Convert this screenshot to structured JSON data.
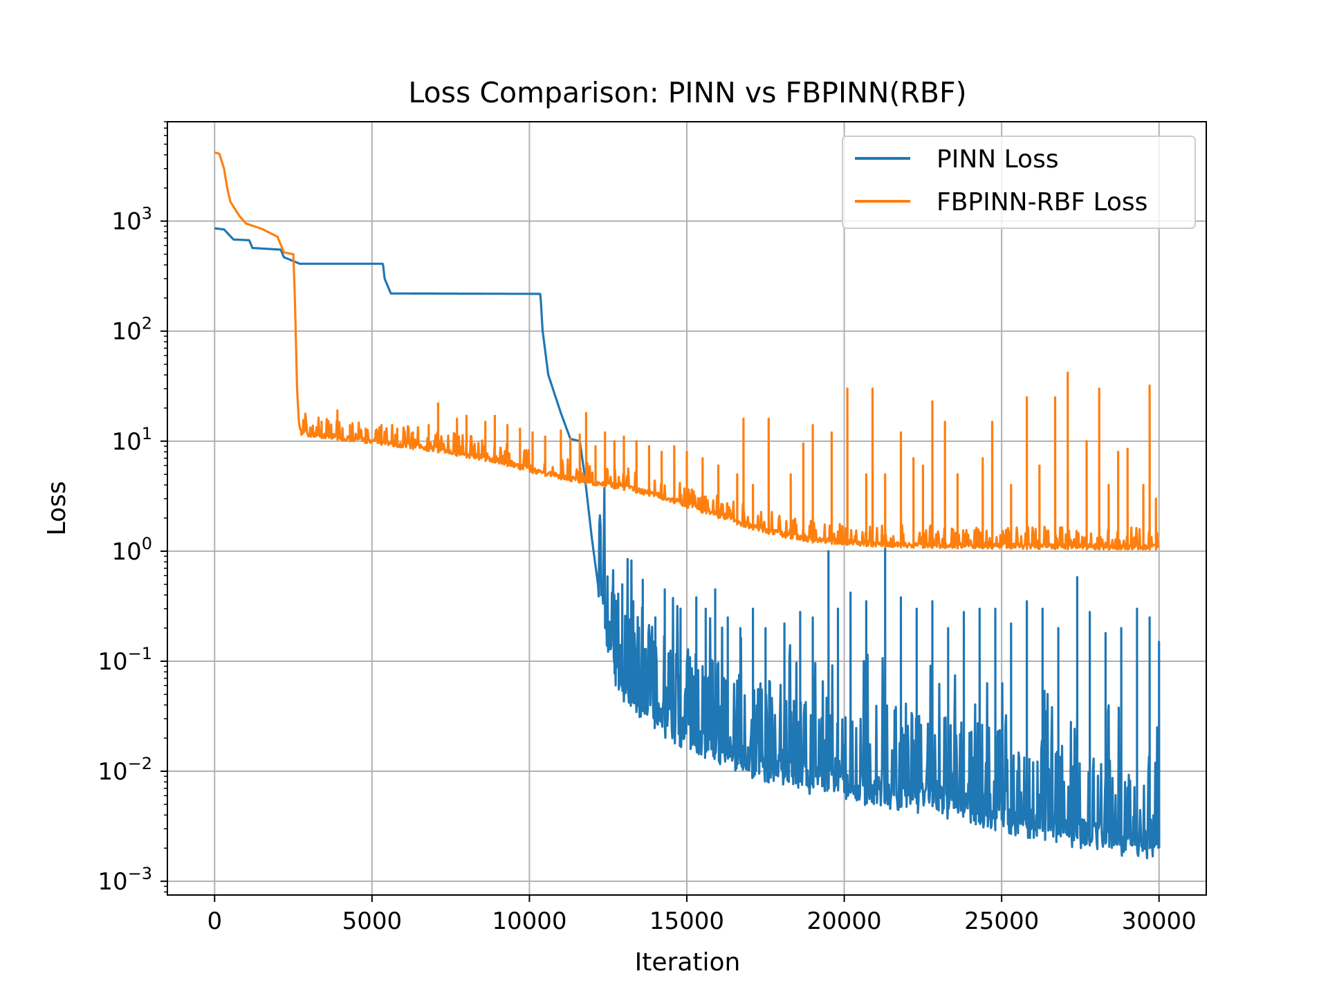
{
  "chart_data": {
    "type": "line",
    "title": "Loss Comparison: PINN vs FBPINN(RBF)",
    "xlabel": "Iteration",
    "ylabel": "Loss",
    "xlim": [
      -1500,
      31500
    ],
    "ylim": [
      0.00075,
      8000
    ],
    "yscale": "log",
    "grid": true,
    "legend_position": "top-right",
    "x_ticks": [
      {
        "value": 0,
        "label": "0"
      },
      {
        "value": 5000,
        "label": "5000"
      },
      {
        "value": 10000,
        "label": "10000"
      },
      {
        "value": 15000,
        "label": "15000"
      },
      {
        "value": 20000,
        "label": "20000"
      },
      {
        "value": 25000,
        "label": "25000"
      },
      {
        "value": 30000,
        "label": "30000"
      }
    ],
    "y_ticks": [
      {
        "value": 0.001,
        "base": "10",
        "exp": "−3"
      },
      {
        "value": 0.01,
        "base": "10",
        "exp": "−2"
      },
      {
        "value": 0.1,
        "base": "10",
        "exp": "−1"
      },
      {
        "value": 1,
        "base": "10",
        "exp": "0"
      },
      {
        "value": 10,
        "base": "10",
        "exp": "1"
      },
      {
        "value": 100,
        "base": "10",
        "exp": "2"
      },
      {
        "value": 1000,
        "base": "10",
        "exp": "3"
      }
    ],
    "series": [
      {
        "name": "PINN Loss",
        "color": "#1f77b4",
        "smooth": [
          [
            0,
            860
          ],
          [
            300,
            840
          ],
          [
            600,
            680
          ],
          [
            1100,
            670
          ],
          [
            1200,
            570
          ],
          [
            2100,
            550
          ],
          [
            2200,
            470
          ],
          [
            2700,
            410
          ],
          [
            5350,
            410
          ],
          [
            5400,
            300
          ],
          [
            5600,
            220
          ],
          [
            10350,
            218
          ],
          [
            10420,
            100
          ],
          [
            10600,
            40
          ],
          [
            11000,
            18
          ],
          [
            11300,
            10.5
          ],
          [
            11600,
            10
          ],
          [
            11750,
            5
          ],
          [
            12000,
            1.2
          ],
          [
            12200,
            0.45
          ],
          [
            12400,
            0.2
          ],
          [
            12600,
            0.09
          ],
          [
            13000,
            0.05
          ],
          [
            14000,
            0.028
          ],
          [
            15000,
            0.019
          ],
          [
            16000,
            0.014
          ],
          [
            17000,
            0.011
          ],
          [
            18000,
            0.009
          ],
          [
            19000,
            0.0075
          ],
          [
            20000,
            0.0065
          ],
          [
            21000,
            0.006
          ],
          [
            22000,
            0.0053
          ],
          [
            23000,
            0.0047
          ],
          [
            24000,
            0.0041
          ],
          [
            25000,
            0.0035
          ],
          [
            26000,
            0.003
          ],
          [
            27000,
            0.0026
          ],
          [
            28000,
            0.0023
          ],
          [
            29000,
            0.002
          ],
          [
            30000,
            0.002
          ]
        ],
        "spikes": [
          [
            12400,
            0.35
          ],
          [
            12700,
            0.4
          ],
          [
            12950,
            0.5
          ],
          [
            13300,
            0.35
          ],
          [
            13600,
            0.55
          ],
          [
            14000,
            0.25
          ],
          [
            14300,
            0.45
          ],
          [
            14800,
            0.3
          ],
          [
            15300,
            0.38
          ],
          [
            15600,
            0.3
          ],
          [
            15900,
            0.45
          ],
          [
            16300,
            0.25
          ],
          [
            16700,
            0.2
          ],
          [
            17100,
            0.3
          ],
          [
            17500,
            0.2
          ],
          [
            18100,
            0.22
          ],
          [
            18600,
            0.28
          ],
          [
            19000,
            0.25
          ],
          [
            19500,
            1.0
          ],
          [
            19800,
            0.3
          ],
          [
            20200,
            0.42
          ],
          [
            20700,
            0.35
          ],
          [
            21300,
            1.05
          ],
          [
            21800,
            0.38
          ],
          [
            22300,
            0.3
          ],
          [
            22800,
            0.35
          ],
          [
            23300,
            0.2
          ],
          [
            23800,
            0.28
          ],
          [
            24300,
            0.3
          ],
          [
            24800,
            0.3
          ],
          [
            25300,
            0.22
          ],
          [
            25800,
            0.35
          ],
          [
            26300,
            0.3
          ],
          [
            26800,
            0.2
          ],
          [
            27400,
            0.58
          ],
          [
            27800,
            0.28
          ],
          [
            28300,
            0.18
          ],
          [
            28800,
            0.2
          ],
          [
            29300,
            0.3
          ],
          [
            29700,
            0.25
          ],
          [
            30000,
            0.15
          ]
        ],
        "noise_start": 12200,
        "noise_end": 30000,
        "noise_low": 0.55,
        "noise_high": 18
      },
      {
        "name": "FBPINN-RBF Loss",
        "color": "#ff7f0e",
        "smooth": [
          [
            0,
            4200
          ],
          [
            150,
            4100
          ],
          [
            300,
            3000
          ],
          [
            400,
            2000
          ],
          [
            500,
            1500
          ],
          [
            800,
            1100
          ],
          [
            1000,
            950
          ],
          [
            1500,
            850
          ],
          [
            2000,
            720
          ],
          [
            2200,
            520
          ],
          [
            2500,
            500
          ],
          [
            2550,
            200
          ],
          [
            2620,
            30
          ],
          [
            2700,
            11.5
          ],
          [
            3000,
            11
          ],
          [
            5000,
            9.5
          ],
          [
            7000,
            8
          ],
          [
            9000,
            6.3
          ],
          [
            10000,
            5.2
          ],
          [
            11000,
            4.5
          ],
          [
            12000,
            4
          ],
          [
            13000,
            3.6
          ],
          [
            14000,
            3.1
          ],
          [
            15000,
            2.5
          ],
          [
            16000,
            2
          ],
          [
            17000,
            1.6
          ],
          [
            18000,
            1.35
          ],
          [
            19000,
            1.2
          ],
          [
            20000,
            1.15
          ],
          [
            21000,
            1.1
          ],
          [
            22000,
            1.08
          ],
          [
            24000,
            1.06
          ],
          [
            26000,
            1.05
          ],
          [
            28000,
            1.04
          ],
          [
            30000,
            1.04
          ]
        ],
        "spikes": [
          [
            3050,
            13
          ],
          [
            3400,
            15
          ],
          [
            3900,
            19
          ],
          [
            4300,
            14
          ],
          [
            4800,
            13
          ],
          [
            5300,
            14
          ],
          [
            5800,
            13
          ],
          [
            6300,
            12
          ],
          [
            6800,
            14
          ],
          [
            7100,
            22
          ],
          [
            7700,
            16
          ],
          [
            8000,
            17
          ],
          [
            8600,
            15
          ],
          [
            8900,
            17
          ],
          [
            9300,
            14
          ],
          [
            9700,
            13
          ],
          [
            10100,
            12
          ],
          [
            10500,
            11
          ],
          [
            11000,
            12.5
          ],
          [
            11300,
            10.5
          ],
          [
            11600,
            11.5
          ],
          [
            11800,
            18
          ],
          [
            12100,
            9
          ],
          [
            12400,
            12
          ],
          [
            12700,
            10
          ],
          [
            13000,
            11
          ],
          [
            13400,
            10
          ],
          [
            13800,
            9
          ],
          [
            14200,
            8
          ],
          [
            14600,
            9
          ],
          [
            15000,
            8
          ],
          [
            15500,
            7
          ],
          [
            16000,
            6
          ],
          [
            16600,
            5
          ],
          [
            17100,
            4
          ],
          [
            16800,
            16
          ],
          [
            17600,
            16
          ],
          [
            18300,
            5
          ],
          [
            18700,
            9.5
          ],
          [
            19000,
            14
          ],
          [
            19600,
            12
          ],
          [
            20100,
            30
          ],
          [
            20700,
            5
          ],
          [
            20900,
            30
          ],
          [
            21300,
            5
          ],
          [
            21800,
            12
          ],
          [
            22200,
            7
          ],
          [
            22500,
            6
          ],
          [
            22800,
            23
          ],
          [
            23200,
            15
          ],
          [
            23600,
            5
          ],
          [
            24400,
            7
          ],
          [
            24700,
            15
          ],
          [
            25300,
            4
          ],
          [
            25800,
            25
          ],
          [
            26200,
            6
          ],
          [
            26700,
            25
          ],
          [
            27100,
            42
          ],
          [
            27700,
            10
          ],
          [
            28100,
            30
          ],
          [
            28400,
            4
          ],
          [
            28700,
            8
          ],
          [
            29000,
            8.5
          ],
          [
            29500,
            4
          ],
          [
            29700,
            32
          ],
          [
            29900,
            3
          ]
        ],
        "noise_start": 2700,
        "noise_end": 30000,
        "noise_low": 1.0,
        "noise_high": 1.6
      }
    ]
  }
}
